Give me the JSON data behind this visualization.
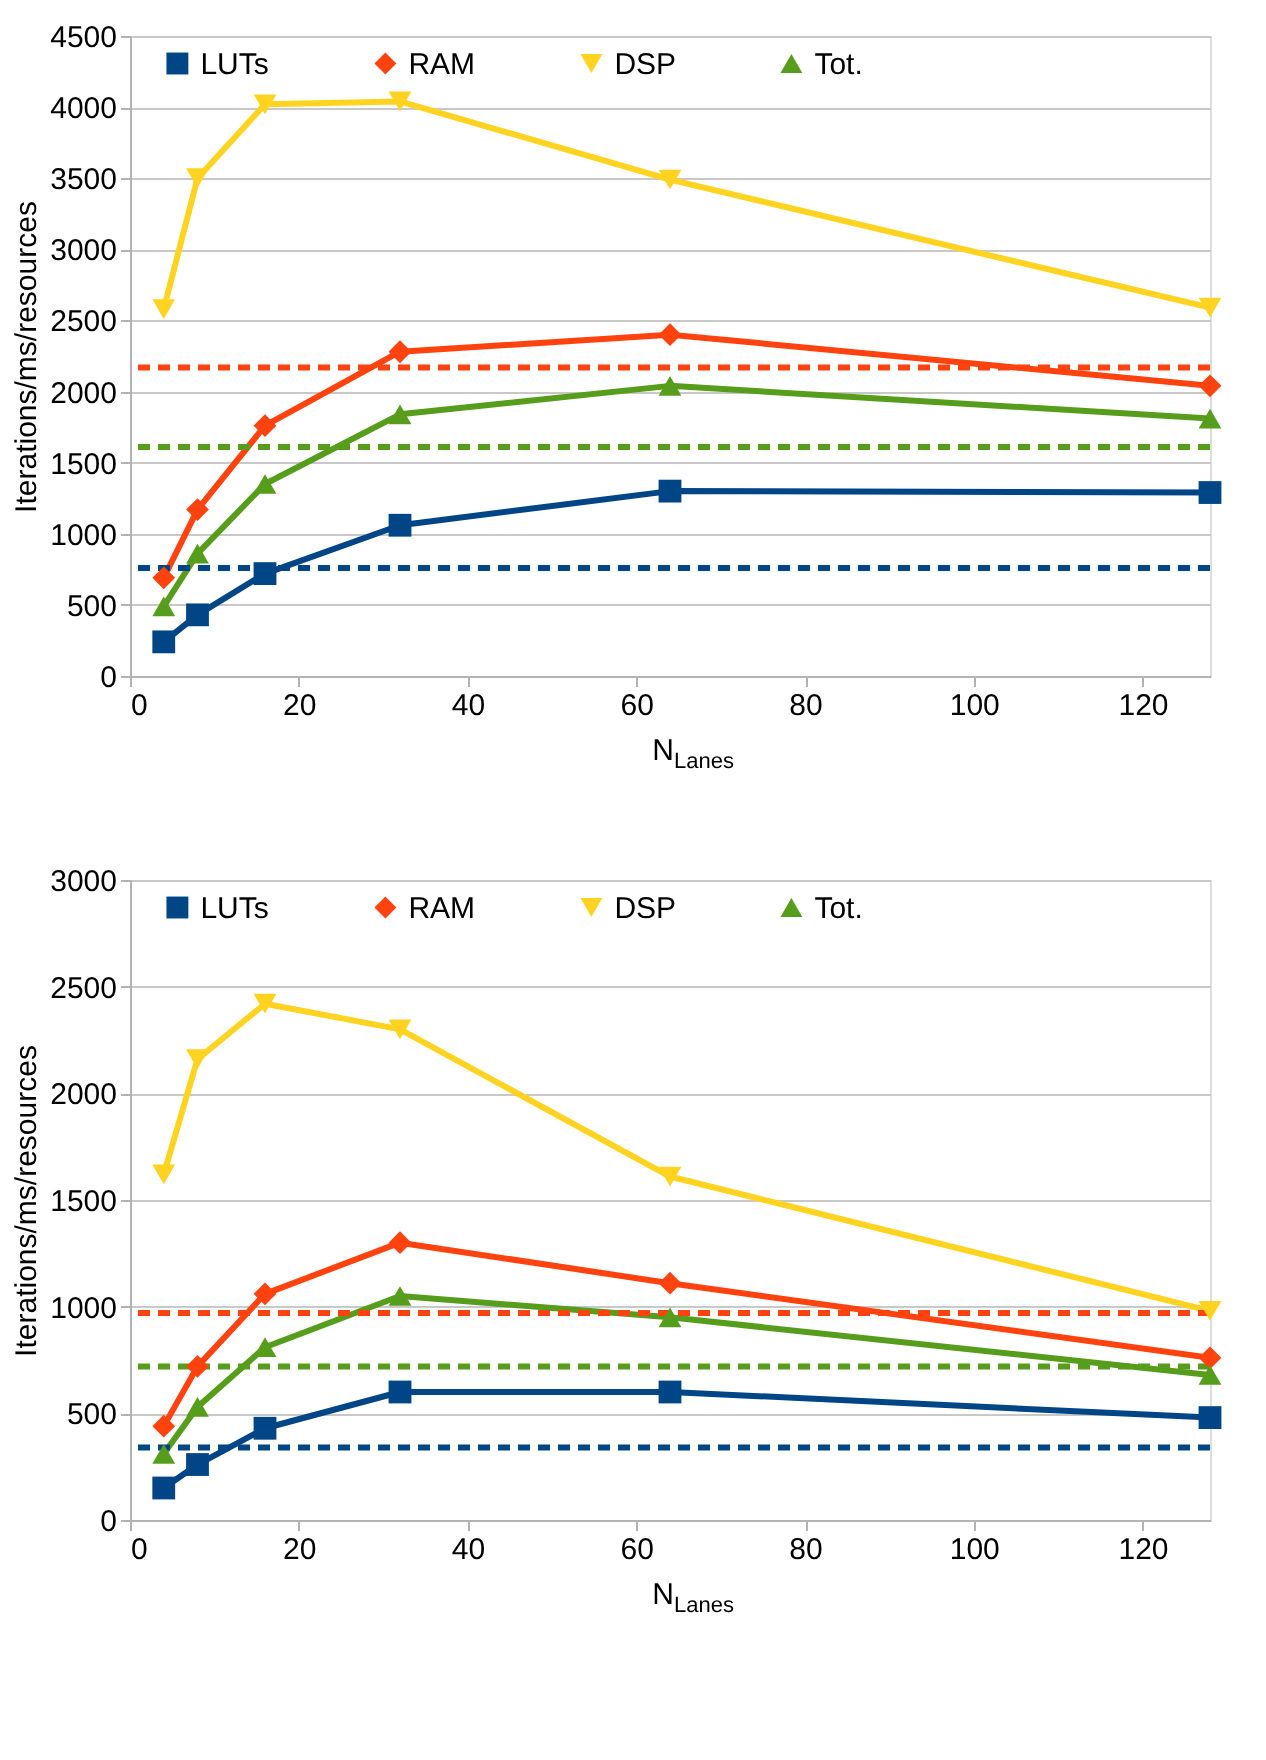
{
  "chart_data": [
    {
      "type": "line",
      "xlabel": "N$_{Lanes}$",
      "ylabel": "Iterations/ms/resources",
      "x": [
        4,
        8,
        16,
        32,
        64,
        128
      ],
      "xlim": [
        0,
        128
      ],
      "xticks": [
        0,
        20,
        40,
        60,
        80,
        100,
        120
      ],
      "ylim": [
        0,
        4500
      ],
      "yticks": [
        0,
        500,
        1000,
        1500,
        2000,
        2500,
        3000,
        3500,
        4000,
        4500
      ],
      "grid": "y",
      "legend": "top",
      "series": [
        {
          "name": "LUTs",
          "color": "#004586",
          "marker": "square",
          "values": [
            240,
            430,
            720,
            1060,
            1300,
            1290
          ]
        },
        {
          "name": "RAM",
          "color": "#ff420e",
          "marker": "diamond",
          "values": [
            690,
            1170,
            1760,
            2280,
            2400,
            2040
          ]
        },
        {
          "name": "DSP",
          "color": "#ffd320",
          "marker": "triangle-down",
          "values": [
            2580,
            3500,
            4020,
            4040,
            3490,
            2590
          ]
        },
        {
          "name": "Tot.",
          "color": "#579d1c",
          "marker": "triangle",
          "values": [
            490,
            860,
            1350,
            1840,
            2040,
            1810
          ]
        }
      ],
      "ref_lines": [
        {
          "axis": "y",
          "value": 2170,
          "color": "#ff420e",
          "line_style": "dashed"
        },
        {
          "axis": "y",
          "value": 1610,
          "color": "#579d1c",
          "line_style": "dashed"
        },
        {
          "axis": "y",
          "value": 760,
          "color": "#004586",
          "line_style": "dashed"
        }
      ]
    },
    {
      "type": "line",
      "xlabel": "N$_{Lanes}$",
      "ylabel": "Iterations/ms/resources",
      "x": [
        4,
        8,
        16,
        32,
        64,
        128
      ],
      "xlim": [
        0,
        128
      ],
      "xticks": [
        0,
        20,
        40,
        60,
        80,
        100,
        120
      ],
      "ylim": [
        0,
        3000
      ],
      "yticks": [
        0,
        500,
        1000,
        1500,
        2000,
        2500,
        3000
      ],
      "grid": "y",
      "legend": "top",
      "series": [
        {
          "name": "LUTs",
          "color": "#004586",
          "marker": "square",
          "values": [
            150,
            260,
            430,
            600,
            600,
            480
          ]
        },
        {
          "name": "RAM",
          "color": "#ff420e",
          "marker": "diamond",
          "values": [
            440,
            720,
            1060,
            1300,
            1110,
            760
          ]
        },
        {
          "name": "DSP",
          "color": "#ffd320",
          "marker": "triangle-down",
          "values": [
            1620,
            2160,
            2420,
            2300,
            1610,
            980
          ]
        },
        {
          "name": "Tot.",
          "color": "#579d1c",
          "marker": "triangle",
          "values": [
            310,
            530,
            810,
            1050,
            950,
            680
          ]
        }
      ],
      "ref_lines": [
        {
          "axis": "y",
          "value": 970,
          "color": "#ff420e",
          "line_style": "dashed"
        },
        {
          "axis": "y",
          "value": 720,
          "color": "#579d1c",
          "line_style": "dashed"
        },
        {
          "axis": "y",
          "value": 340,
          "color": "#004586",
          "line_style": "dashed"
        }
      ]
    }
  ]
}
